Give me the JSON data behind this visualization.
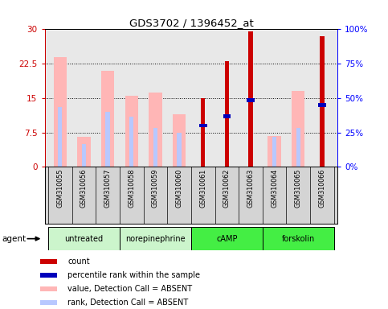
{
  "title": "GDS3702 / 1396452_at",
  "samples": [
    "GSM310055",
    "GSM310056",
    "GSM310057",
    "GSM310058",
    "GSM310059",
    "GSM310060",
    "GSM310061",
    "GSM310062",
    "GSM310063",
    "GSM310064",
    "GSM310065",
    "GSM310066"
  ],
  "absent_value": [
    24.0,
    6.5,
    21.0,
    15.5,
    16.2,
    11.5,
    null,
    null,
    null,
    6.8,
    16.5,
    null
  ],
  "absent_rank": [
    13.0,
    5.0,
    12.0,
    11.0,
    8.5,
    7.5,
    null,
    null,
    null,
    6.5,
    8.5,
    null
  ],
  "count_value": [
    null,
    null,
    null,
    null,
    null,
    null,
    15.0,
    23.0,
    29.5,
    null,
    null,
    28.5
  ],
  "count_rank": [
    null,
    null,
    null,
    null,
    null,
    null,
    9.0,
    11.0,
    14.5,
    null,
    null,
    13.5
  ],
  "agents": [
    {
      "label": "untreated",
      "start": 0,
      "end": 3,
      "color": "#ccf5cc"
    },
    {
      "label": "norepinephrine",
      "start": 3,
      "end": 6,
      "color": "#ccf5cc"
    },
    {
      "label": "cAMP",
      "start": 6,
      "end": 9,
      "color": "#44ee44"
    },
    {
      "label": "forskolin",
      "start": 9,
      "end": 12,
      "color": "#44ee44"
    }
  ],
  "ylim_left": [
    0,
    30
  ],
  "ylim_right": [
    0,
    100
  ],
  "yticks_left": [
    0,
    7.5,
    15,
    22.5,
    30
  ],
  "yticks_right": [
    0,
    25,
    50,
    75,
    100
  ],
  "ytick_labels_left": [
    "0",
    "7.5",
    "15",
    "22.5",
    "30"
  ],
  "ytick_labels_right": [
    "0%",
    "25%",
    "50%",
    "75%",
    "100%"
  ],
  "color_absent_value": "#ffb6b6",
  "color_absent_rank": "#b8c8ff",
  "color_count": "#cc0000",
  "color_percentile": "#0000bb",
  "legend_items": [
    {
      "color": "#cc0000",
      "label": "count"
    },
    {
      "color": "#0000bb",
      "label": "percentile rank within the sample"
    },
    {
      "color": "#ffb6b6",
      "label": "value, Detection Call = ABSENT"
    },
    {
      "color": "#b8c8ff",
      "label": "rank, Detection Call = ABSENT"
    }
  ],
  "plot_bg": "#e8e8e8",
  "cell_bg": "#d4d4d4",
  "absent_bar_width": 0.55,
  "rank_bar_width": 0.18,
  "count_bar_width": 0.18
}
